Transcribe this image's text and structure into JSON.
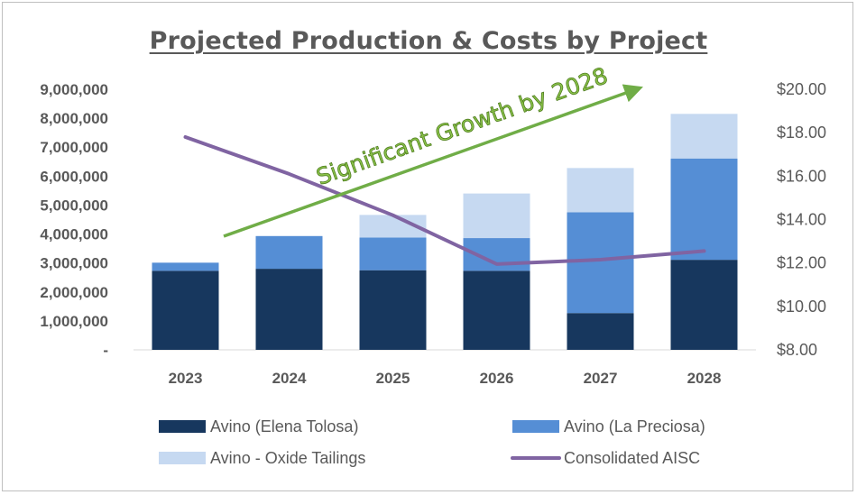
{
  "chart_data": {
    "type": "bar",
    "title": "Projected Production & Costs by Project",
    "categories": [
      "2023",
      "2024",
      "2025",
      "2026",
      "2027",
      "2028"
    ],
    "series": [
      {
        "name": "Avino (Elena Tolosa)",
        "type": "stacked-bar",
        "axis": "left",
        "color": "#17375e",
        "values": [
          2730000,
          2800000,
          2750000,
          2730000,
          1270000,
          3110000
        ]
      },
      {
        "name": "Avino (La Preciosa)",
        "type": "stacked-bar",
        "axis": "left",
        "color": "#558ed5",
        "values": [
          280000,
          1130000,
          1130000,
          1130000,
          3480000,
          3500000
        ]
      },
      {
        "name": "Avino - Oxide Tailings",
        "type": "stacked-bar",
        "axis": "left",
        "color": "#c6d9f1",
        "values": [
          0,
          0,
          780000,
          1540000,
          1530000,
          1540000
        ]
      },
      {
        "name": "Consolidated AISC",
        "type": "line",
        "axis": "right",
        "color": "#8064a2",
        "values": [
          17.8,
          16.1,
          14.2,
          11.95,
          12.15,
          12.55
        ]
      }
    ],
    "left_axis": {
      "ylim": [
        0,
        9000000
      ],
      "ticks": [
        0,
        1000000,
        2000000,
        3000000,
        4000000,
        5000000,
        6000000,
        7000000,
        8000000,
        9000000
      ],
      "tick_labels": [
        "-",
        "1,000,000",
        "2,000,000",
        "3,000,000",
        "4,000,000",
        "5,000,000",
        "6,000,000",
        "7,000,000",
        "8,000,000",
        "9,000,000"
      ]
    },
    "right_axis": {
      "ylim": [
        8,
        20
      ],
      "ticks": [
        8,
        10,
        12,
        14,
        16,
        18,
        20
      ],
      "tick_labels": [
        "$8.00",
        "$10.00",
        "$12.00",
        "$14.00",
        "$16.00",
        "$18.00",
        "$20.00"
      ]
    },
    "annotation": {
      "text": "Significant Growth by 2028",
      "color": "#70ad47"
    },
    "grid": false,
    "legend_position": "bottom"
  }
}
